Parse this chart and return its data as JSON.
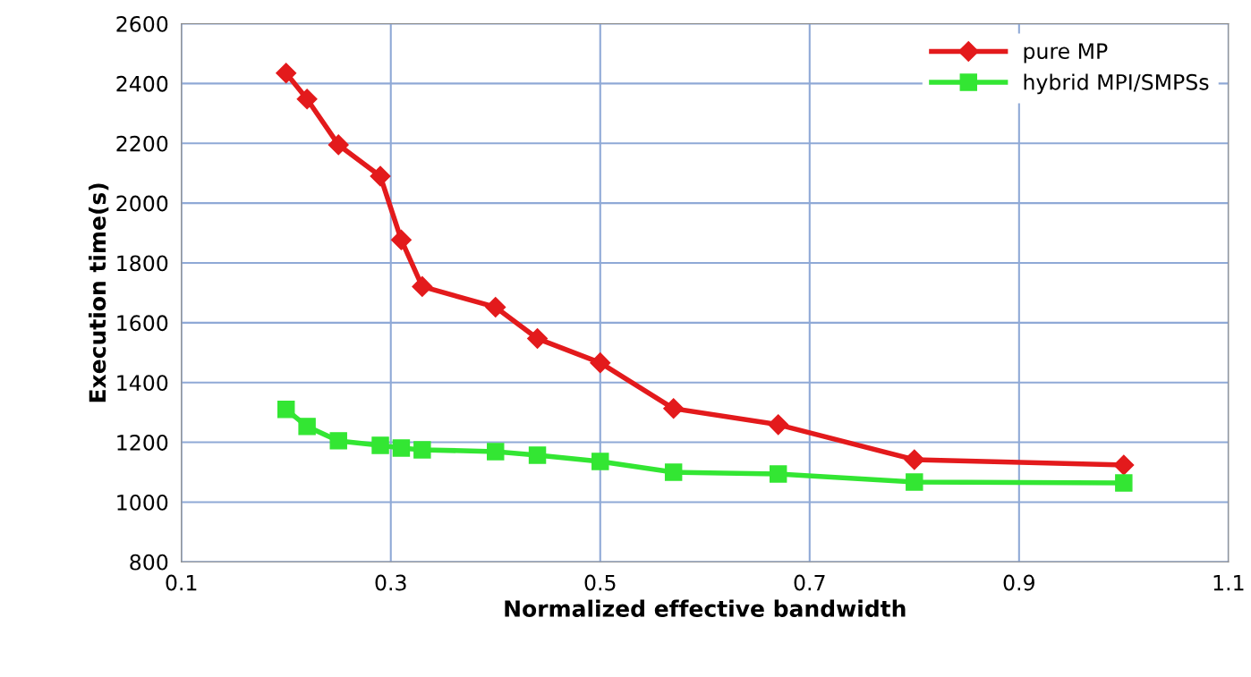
{
  "chart_data": {
    "type": "line",
    "xlabel": "Normalized effective bandwidth",
    "ylabel": "Execution time(s)",
    "xlim": [
      0.1,
      1.1
    ],
    "xticks": [
      0.1,
      0.3,
      0.5,
      0.7,
      0.9,
      1.1
    ],
    "ylim": [
      800,
      2600
    ],
    "yticks": [
      800,
      1000,
      1200,
      1400,
      1600,
      1800,
      2000,
      2200,
      2400,
      2600
    ],
    "grid": true,
    "legend": "top right",
    "line_style": "solid",
    "series": [
      {
        "name": "pure MP",
        "color": "#e31a1c",
        "marker": "diamond",
        "x": [
          0.2,
          0.22,
          0.25,
          0.29,
          0.31,
          0.33,
          0.4,
          0.44,
          0.5,
          0.57,
          0.67,
          0.8,
          1.0
        ],
        "values": [
          2435,
          2348,
          2195,
          2090,
          1877,
          1721,
          1652,
          1547,
          1466,
          1313,
          1259,
          1142,
          1124
        ]
      },
      {
        "name": "hybrid MPI/SMPSs",
        "color": "#33e633",
        "marker": "square",
        "x": [
          0.2,
          0.22,
          0.25,
          0.29,
          0.31,
          0.33,
          0.4,
          0.44,
          0.5,
          0.57,
          0.67,
          0.8,
          1.0
        ],
        "values": [
          1310,
          1253,
          1205,
          1190,
          1181,
          1175,
          1169,
          1157,
          1136,
          1100,
          1094,
          1067,
          1064
        ]
      }
    ]
  }
}
